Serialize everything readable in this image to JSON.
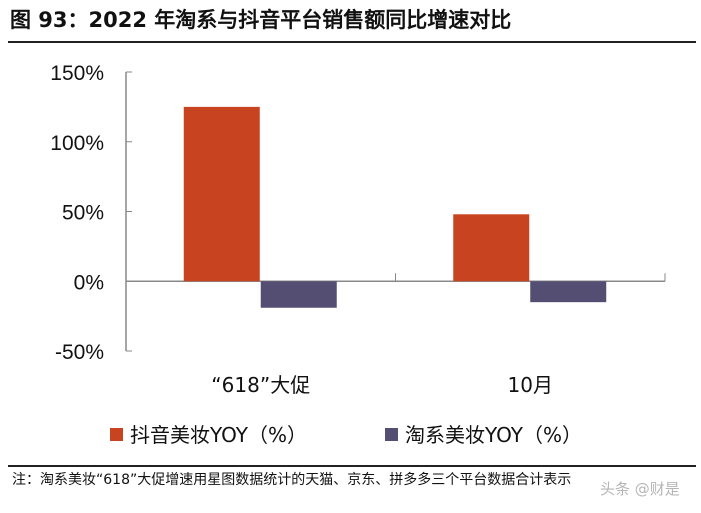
{
  "title": "图 93：2022 年淘系与抖音平台销售额同比增速对比",
  "note": "注：淘系美妆“618”大促增速用星图数据统计的天猫、京东、拼多多三个平台数据合计表示",
  "watermark": "头条 @财是",
  "chart_data": {
    "type": "bar",
    "title": "2022 年淘系与抖音平台销售额同比增速对比",
    "categories": [
      "“618”大促",
      "10月"
    ],
    "series": [
      {
        "name": "抖音美妆YOY（%）",
        "color": "#C8431F",
        "values": [
          125,
          48
        ]
      },
      {
        "name": "淘系美妆YOY（%）",
        "color": "#544F72",
        "values": [
          -19,
          -15
        ]
      }
    ],
    "ylim": [
      -50,
      150
    ],
    "yticks": [
      150,
      100,
      50,
      0,
      -50
    ],
    "ytick_labels": [
      "150%",
      "100%",
      "50%",
      "0%",
      "-50%"
    ],
    "legend": "bottom",
    "grid": false
  }
}
